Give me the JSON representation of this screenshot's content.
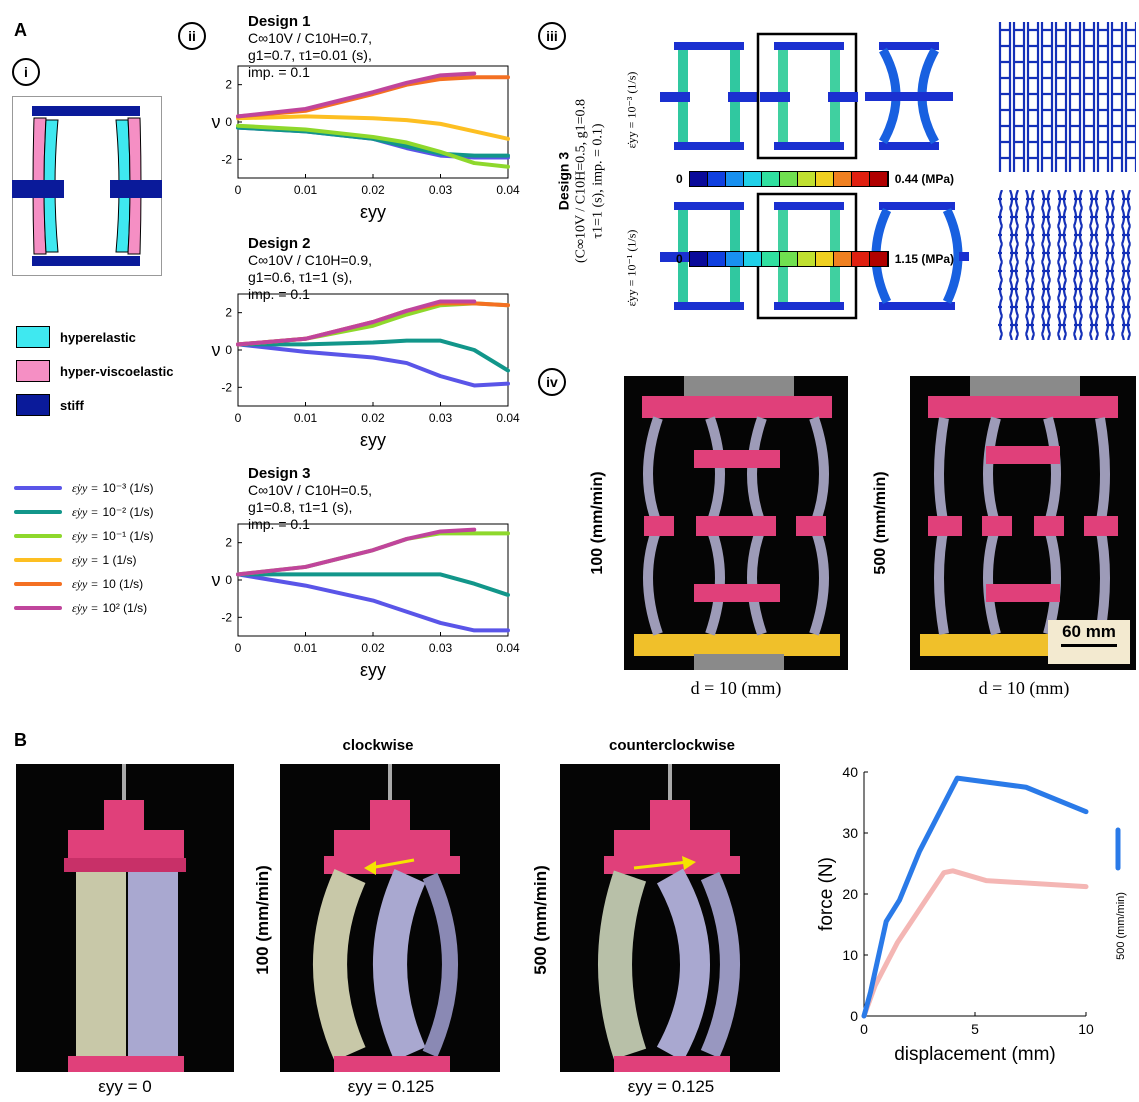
{
  "panel_labels": {
    "A": "A",
    "B": "B",
    "i": "i",
    "ii": "ii",
    "iii": "iii",
    "iv": "iv"
  },
  "materials": [
    {
      "label": "hyperelastic",
      "color": "#3fe8f0"
    },
    {
      "label": "hyper-viscoelastic",
      "color": "#f58fc4"
    },
    {
      "label": "stiff",
      "color": "#0a1a9a"
    }
  ],
  "rate_legend": [
    {
      "rate": "10⁻³ (1/s)",
      "color": "#5a55e8"
    },
    {
      "rate": "10⁻² (1/s)",
      "color": "#12968a"
    },
    {
      "rate": "10⁻¹ (1/s)",
      "color": "#8ed82c"
    },
    {
      "rate": "1 (1/s)",
      "color": "#fdbf22"
    },
    {
      "rate": "10 (1/s)",
      "color": "#f47022"
    },
    {
      "rate": "10² (1/s)",
      "color": "#c0459c"
    }
  ],
  "rate_legend_prefix": "ε̇yy =",
  "designs": [
    {
      "title": "Design 1",
      "l1": "C∞10V / C10H=0.7,",
      "l2": "g1=0.7, τ1=0.01 (s),",
      "l3": "imp. = 0.1"
    },
    {
      "title": "Design 2",
      "l1": "C∞10V / C10H=0.9,",
      "l2": "g1=0.6, τ1=1 (s),",
      "l3": "imp. = 0.1"
    },
    {
      "title": "Design 3",
      "l1": "C∞10V / C10H=0.5,",
      "l2": "g1=0.8, τ1=1 (s),",
      "l3": "imp. = 0.1"
    }
  ],
  "plot_axes": {
    "ylabel": "ν",
    "xlabel": "εyy",
    "xticks": [
      "0",
      "0.01",
      "0.02",
      "0.03",
      "0.04"
    ],
    "yticks": [
      "2",
      "0",
      "-2"
    ]
  },
  "chart_data": [
    {
      "type": "line",
      "title": "Design 1",
      "xlabel": "εyy",
      "ylabel": "ν",
      "xlim": [
        0,
        0.04
      ],
      "ylim": [
        -3,
        3
      ],
      "series": [
        {
          "name": "10⁻³ (1/s)",
          "color": "#5a55e8",
          "x": [
            0,
            0.01,
            0.02,
            0.025,
            0.03,
            0.035,
            0.04
          ],
          "y": [
            -0.3,
            -0.5,
            -0.9,
            -1.4,
            -1.8,
            -1.9,
            -1.9
          ]
        },
        {
          "name": "10⁻² (1/s)",
          "color": "#12968a",
          "x": [
            0,
            0.01,
            0.02,
            0.025,
            0.03,
            0.035,
            0.04
          ],
          "y": [
            -0.3,
            -0.5,
            -0.9,
            -1.3,
            -1.7,
            -1.8,
            -1.8
          ]
        },
        {
          "name": "10⁻¹ (1/s)",
          "color": "#8ed82c",
          "x": [
            0,
            0.01,
            0.02,
            0.025,
            0.03,
            0.035,
            0.04
          ],
          "y": [
            -0.2,
            -0.4,
            -0.8,
            -1.1,
            -1.6,
            -2.2,
            -2.4
          ]
        },
        {
          "name": "1 (1/s)",
          "color": "#fdbf22",
          "x": [
            0,
            0.01,
            0.02,
            0.025,
            0.03,
            0.035,
            0.04
          ],
          "y": [
            0.2,
            0.3,
            0.2,
            0.1,
            -0.1,
            -0.5,
            -0.9
          ]
        },
        {
          "name": "10 (1/s)",
          "color": "#f47022",
          "x": [
            0,
            0.01,
            0.02,
            0.025,
            0.03,
            0.035,
            0.04
          ],
          "y": [
            0.3,
            0.6,
            1.5,
            2.0,
            2.3,
            2.4,
            2.4
          ]
        },
        {
          "name": "10² (1/s)",
          "color": "#c0459c",
          "x": [
            0,
            0.01,
            0.02,
            0.025,
            0.03,
            0.035
          ],
          "y": [
            0.3,
            0.7,
            1.6,
            2.1,
            2.5,
            2.6
          ]
        }
      ]
    },
    {
      "type": "line",
      "title": "Design 2",
      "xlabel": "εyy",
      "ylabel": "ν",
      "xlim": [
        0,
        0.04
      ],
      "ylim": [
        -3,
        3
      ],
      "series": [
        {
          "name": "10⁻³ (1/s)",
          "color": "#5a55e8",
          "x": [
            0,
            0.01,
            0.02,
            0.025,
            0.03,
            0.035,
            0.04
          ],
          "y": [
            0.3,
            -0.1,
            -0.4,
            -0.7,
            -1.4,
            -1.9,
            -1.8
          ]
        },
        {
          "name": "10⁻² (1/s)",
          "color": "#12968a",
          "x": [
            0,
            0.01,
            0.02,
            0.025,
            0.03,
            0.035,
            0.04
          ],
          "y": [
            0.3,
            0.3,
            0.4,
            0.5,
            0.5,
            0.0,
            -1.1
          ]
        },
        {
          "name": "10⁻¹ (1/s)",
          "color": "#8ed82c",
          "x": [
            0,
            0.01,
            0.02,
            0.025,
            0.03,
            0.035,
            0.04
          ],
          "y": [
            0.3,
            0.6,
            1.3,
            1.9,
            2.4,
            2.5,
            2.4
          ]
        },
        {
          "name": "10 (1/s)",
          "color": "#f47022",
          "x": [
            0,
            0.01,
            0.02,
            0.025,
            0.03,
            0.035,
            0.04
          ],
          "y": [
            0.3,
            0.6,
            1.5,
            2.1,
            2.5,
            2.5,
            2.4
          ]
        },
        {
          "name": "10² (1/s)",
          "color": "#c0459c",
          "x": [
            0,
            0.01,
            0.02,
            0.025,
            0.03,
            0.035
          ],
          "y": [
            0.3,
            0.6,
            1.5,
            2.1,
            2.6,
            2.6
          ]
        }
      ]
    },
    {
      "type": "line",
      "title": "Design 3",
      "xlabel": "εyy",
      "ylabel": "ν",
      "xlim": [
        0,
        0.04
      ],
      "ylim": [
        -3,
        3
      ],
      "series": [
        {
          "name": "10⁻³ (1/s)",
          "color": "#5a55e8",
          "x": [
            0,
            0.01,
            0.02,
            0.025,
            0.03,
            0.035,
            0.04
          ],
          "y": [
            0.3,
            -0.3,
            -1.1,
            -1.7,
            -2.3,
            -2.7,
            -2.7
          ]
        },
        {
          "name": "10⁻² (1/s)",
          "color": "#12968a",
          "x": [
            0,
            0.01,
            0.02,
            0.025,
            0.03,
            0.035,
            0.04
          ],
          "y": [
            0.3,
            0.3,
            0.3,
            0.3,
            0.3,
            -0.2,
            -0.8
          ]
        },
        {
          "name": "10⁻¹ (1/s)",
          "color": "#8ed82c",
          "x": [
            0,
            0.01,
            0.02,
            0.025,
            0.03,
            0.035,
            0.04
          ],
          "y": [
            0.3,
            0.7,
            1.6,
            2.2,
            2.5,
            2.5,
            2.5
          ]
        },
        {
          "name": "10² (1/s)",
          "color": "#c0459c",
          "x": [
            0,
            0.01,
            0.02,
            0.025,
            0.03,
            0.035
          ],
          "y": [
            0.3,
            0.7,
            1.6,
            2.2,
            2.6,
            2.7
          ]
        }
      ]
    },
    {
      "type": "line",
      "xlabel": "displacement (mm)",
      "ylabel": "force (N)",
      "xlim": [
        0,
        10
      ],
      "ylim": [
        0,
        40
      ],
      "series": [
        {
          "name": "500 (mm/min)",
          "color": "#2a7ae8",
          "x": [
            0,
            0.3,
            1.0,
            1.6,
            2.5,
            4.2,
            7.3,
            10
          ],
          "y": [
            0,
            4,
            15.5,
            19,
            27,
            39,
            37.5,
            33.5
          ]
        },
        {
          "color": "#f4b6b4",
          "x": [
            0,
            0.5,
            1.5,
            3.6,
            4.0,
            5.5,
            10
          ],
          "y": [
            0,
            5,
            12,
            23.5,
            23.8,
            22.2,
            21.2
          ]
        }
      ]
    }
  ],
  "iii": {
    "design_label": "Design 3",
    "params_l1": "(C∞10V / C10H=0.5,  g1=0.8",
    "params_l2": "τ1=1 (s), imp. = 0.1)",
    "rate_top": "ε̇yy = 10⁻³ (1/s)",
    "rate_bottom": "ε̇yy = 10⁻¹ (1/s)",
    "cbar_top_min": "0",
    "cbar_top_max": "0.44 (MPa)",
    "cbar_bottom_min": "0",
    "cbar_bottom_max": "1.15 (MPa)",
    "cbar_colors": [
      "#0a0a9a",
      "#1040e0",
      "#1890f0",
      "#20d0e8",
      "#30e0a0",
      "#70e050",
      "#c0e030",
      "#f0d020",
      "#f08020",
      "#e02010",
      "#b00000"
    ]
  },
  "iv": {
    "left_rate": "100 (mm/min)",
    "right_rate": "500 (mm/min)",
    "left_caption": "d = 10 (mm)",
    "right_caption": "d = 10 (mm)",
    "scale": "60 mm"
  },
  "B": {
    "clockwise": "clockwise",
    "counterclockwise": "counterclockwise",
    "rate_mid": "100 (mm/min)",
    "rate_right": "500 (mm/min)",
    "cap1": "εyy = 0",
    "cap2": "εyy = 0.125",
    "cap3": "εyy = 0.125",
    "force_legend": "500 (mm/min)",
    "force_xticks": [
      "0",
      "5",
      "10"
    ],
    "force_yticks": [
      "40",
      "30",
      "20",
      "10",
      "0"
    ]
  }
}
